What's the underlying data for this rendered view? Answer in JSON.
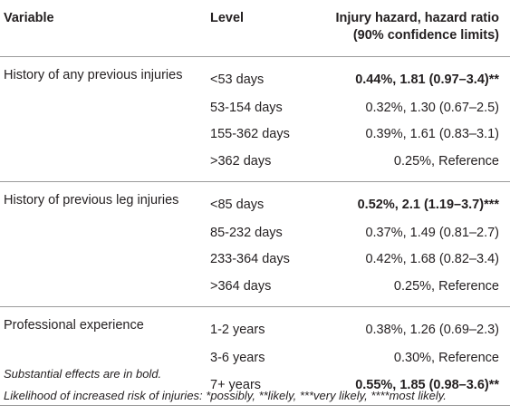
{
  "headers": {
    "variable": "Variable",
    "level": "Level",
    "hazard_line1": "Injury hazard, hazard ratio",
    "hazard_line2": "(90% confidence limits)"
  },
  "groups": [
    {
      "variable": "History of any previous injuries",
      "rows": [
        {
          "level": "<53 days",
          "value": "0.44%, 1.81 (0.97–3.4)**",
          "bold": true
        },
        {
          "level": "53-154 days",
          "value": "0.32%, 1.30 (0.67–2.5)",
          "bold": false
        },
        {
          "level": "155-362 days",
          "value": "0.39%, 1.61 (0.83–3.1)",
          "bold": false
        },
        {
          "level": ">362 days",
          "value": "0.25%, Reference",
          "bold": false
        }
      ]
    },
    {
      "variable": "History of previous leg injuries",
      "rows": [
        {
          "level": "<85 days",
          "value": "0.52%, 2.1 (1.19–3.7)***",
          "bold": true
        },
        {
          "level": "85-232 days",
          "value": "0.37%, 1.49 (0.81–2.7)",
          "bold": false
        },
        {
          "level": "233-364 days",
          "value": "0.42%, 1.68 (0.82–3.4)",
          "bold": false
        },
        {
          "level": ">364 days",
          "value": "0.25%, Reference",
          "bold": false
        }
      ]
    },
    {
      "variable": "Professional experience",
      "rows": [
        {
          "level": "1-2 years",
          "value": "0.38%, 1.26 (0.69–2.3)",
          "bold": false
        },
        {
          "level": "3-6 years",
          "value": "0.30%, Reference",
          "bold": false
        },
        {
          "level": "7+ years",
          "value": "0.55%, 1.85 (0.98–3.6)**",
          "bold": true
        }
      ]
    }
  ],
  "notes": {
    "line1": "Substantial effects are in bold.",
    "line2": "Likelihood of increased risk of injuries: *possibly, **likely, ***very likely, ****most likely."
  }
}
